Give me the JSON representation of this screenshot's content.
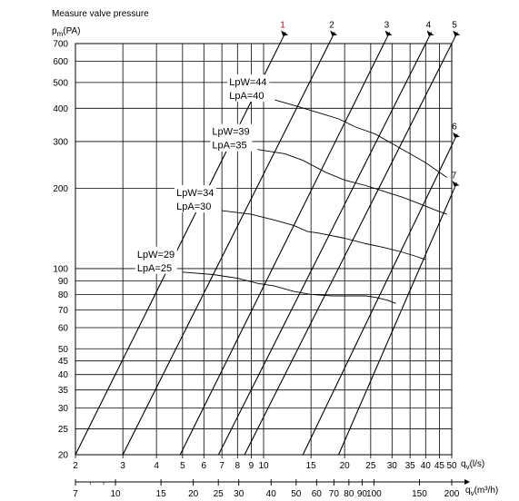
{
  "chart_data": {
    "type": "line",
    "title": "Measure valve pressure",
    "ylabel": "p_m(PA)",
    "ylabel_main": "p",
    "ylabel_sub": "m",
    "ylabel_unit": "(PA)",
    "xlabel_ls": "q_v (l/s)",
    "xlabel_ls_main": "q",
    "xlabel_ls_sub": "v",
    "xlabel_ls_unit": "(l/s)",
    "xlabel_m3h": "q_v (m³/h)",
    "xlabel_m3h_main": "q",
    "xlabel_m3h_sub": "v",
    "xlabel_m3h_unit": "(m³/h)",
    "y_scale": "log",
    "x_scale": "log",
    "ylim": [
      20,
      700
    ],
    "xlim_ls": [
      2,
      50
    ],
    "xlim_m3h": [
      7,
      200
    ],
    "grid": true,
    "y_ticks": [
      20,
      25,
      30,
      35,
      40,
      45,
      50,
      60,
      70,
      80,
      90,
      100,
      200,
      300,
      400,
      500,
      600,
      700
    ],
    "y_tick_labels": [
      "20",
      "25",
      "30",
      "35",
      "40",
      "45",
      "50",
      "60",
      "70",
      "80",
      "90",
      "100",
      "200",
      "300",
      "400",
      "500",
      "600",
      "700"
    ],
    "x_ticks_ls": [
      2,
      3,
      4,
      5,
      6,
      7,
      8,
      9,
      10,
      15,
      20,
      25,
      30,
      35,
      40,
      45,
      50
    ],
    "x_tick_labels_ls": [
      "2",
      "3",
      "4",
      "5",
      "6",
      "7",
      "8",
      "9",
      "10",
      "15",
      "20",
      "25",
      "30",
      "35",
      "40",
      "45",
      "50"
    ],
    "x_ticks_m3h": [
      7,
      10,
      15,
      20,
      25,
      30,
      40,
      50,
      60,
      70,
      80,
      90,
      100,
      150,
      200
    ],
    "x_tick_labels_m3h": [
      "7",
      "10",
      "15",
      "20",
      "25",
      "30",
      "40",
      "50",
      "60",
      "70",
      "80",
      "90",
      "100",
      "150",
      "200"
    ],
    "diagonals": [
      {
        "name": "1",
        "points": [
          [
            2.0,
            20
          ],
          [
            11.5,
            700
          ]
        ]
      },
      {
        "name": "2",
        "points": [
          [
            3.0,
            20
          ],
          [
            17.5,
            700
          ]
        ]
      },
      {
        "name": "3",
        "points": [
          [
            4.9,
            20
          ],
          [
            28,
            700
          ]
        ]
      },
      {
        "name": "4",
        "points": [
          [
            6.8,
            20
          ],
          [
            40,
            700
          ]
        ]
      },
      {
        "name": "5",
        "points": [
          [
            8.5,
            20
          ],
          [
            50,
            700
          ]
        ]
      },
      {
        "name": "6",
        "points": [
          [
            14.0,
            20
          ],
          [
            50,
            290
          ]
        ]
      },
      {
        "name": "7",
        "points": [
          [
            19.0,
            20
          ],
          [
            50,
            190
          ]
        ]
      }
    ],
    "diagonal_label_colors": [
      "#c00000",
      "#000000",
      "#000000",
      "#000000",
      "#000000",
      "#000000",
      "#000000"
    ],
    "series": [
      {
        "name": "LpW=44 LpA=40",
        "label_top": "LpW=44",
        "label_bottom": "LpA=40",
        "points": [
          [
            11,
            430
          ],
          [
            13,
            410
          ],
          [
            16,
            385
          ],
          [
            19,
            365
          ],
          [
            22,
            340
          ],
          [
            26,
            320
          ],
          [
            30,
            295
          ],
          [
            35,
            270
          ],
          [
            40,
            250
          ],
          [
            45,
            230
          ],
          [
            48,
            220
          ]
        ]
      },
      {
        "name": "LpW=39 LpA=35",
        "label_top": "LpW=39",
        "label_bottom": "LpA=35",
        "points": [
          [
            9.5,
            280
          ],
          [
            12,
            270
          ],
          [
            14,
            255
          ],
          [
            17,
            230
          ],
          [
            20,
            215
          ],
          [
            24,
            205
          ],
          [
            28,
            195
          ],
          [
            33,
            185
          ],
          [
            38,
            175
          ],
          [
            44,
            165
          ],
          [
            48,
            160
          ]
        ]
      },
      {
        "name": "LpW=34 LpA=30",
        "label_top": "LpW=34",
        "label_bottom": "LpA=30",
        "points": [
          [
            7,
            165
          ],
          [
            9,
            160
          ],
          [
            11,
            152
          ],
          [
            13,
            145
          ],
          [
            14.5,
            138
          ],
          [
            16,
            136
          ],
          [
            20,
            130
          ],
          [
            24,
            124
          ],
          [
            28,
            120
          ],
          [
            32,
            116
          ],
          [
            36,
            112
          ],
          [
            40,
            108
          ]
        ]
      },
      {
        "name": "LpW=29 LpA=25",
        "label_top": "LpW=29",
        "label_bottom": "LpA=25",
        "points": [
          [
            5,
            97
          ],
          [
            6.5,
            95
          ],
          [
            8,
            92
          ],
          [
            9.5,
            88
          ],
          [
            11,
            86
          ],
          [
            13,
            82
          ],
          [
            15,
            80
          ],
          [
            18,
            79
          ],
          [
            20,
            79
          ],
          [
            24,
            79
          ],
          [
            26,
            78
          ],
          [
            29,
            76
          ],
          [
            31,
            74
          ]
        ]
      }
    ]
  }
}
